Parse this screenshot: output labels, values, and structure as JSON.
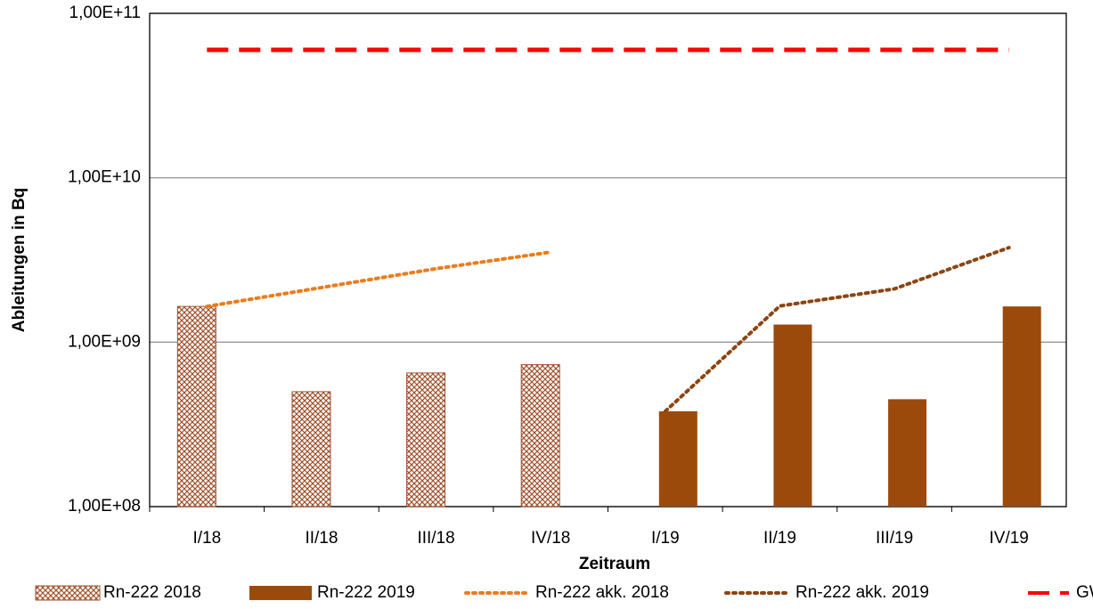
{
  "chart_data": {
    "type": "bar_line_log",
    "y_label": "Ableitungen in Bq",
    "x_label": "Zeitraum",
    "categories": [
      "I/18",
      "II/18",
      "III/18",
      "IV/18",
      "I/19",
      "II/19",
      "III/19",
      "IV/19"
    ],
    "log_scale": true,
    "ylim": [
      100000000,
      100000000000
    ],
    "yticks": [
      {
        "value": 100000000,
        "label": "1,00E+08"
      },
      {
        "value": 1000000000,
        "label": "1,00E+09"
      },
      {
        "value": 10000000000,
        "label": "1,00E+10"
      },
      {
        "value": 100000000000,
        "label": "1,00E+11"
      }
    ],
    "grid": true,
    "legend": "bottom",
    "series": [
      {
        "name": "Rn-222 2018",
        "kind": "bar",
        "pattern": "hatch",
        "color": "#a0522d",
        "values": [
          1650000000,
          500000000,
          650000000,
          730000000,
          null,
          null,
          null,
          null
        ]
      },
      {
        "name": "Rn-222 2019",
        "kind": "bar",
        "color": "#9c4a0c",
        "values": [
          null,
          null,
          null,
          null,
          380000000,
          1280000000,
          450000000,
          1650000000
        ]
      },
      {
        "name": "Rn-222 akk. 2018",
        "kind": "line",
        "dash": "dotted",
        "color": "#e87d1e",
        "values": [
          1650000000,
          2150000000,
          2800000000,
          3530000000,
          null,
          null,
          null,
          null
        ]
      },
      {
        "name": "Rn-222 akk. 2019",
        "kind": "line",
        "dash": "dotted",
        "color": "#8b4513",
        "values": [
          null,
          null,
          null,
          null,
          380000000,
          1660000000,
          2110000000,
          3760000000
        ]
      },
      {
        "name": "GW",
        "kind": "line",
        "dash": "dashed",
        "color": "#ff0000",
        "values": [
          60000000000,
          60000000000,
          60000000000,
          60000000000,
          60000000000,
          60000000000,
          60000000000,
          60000000000
        ]
      }
    ]
  }
}
